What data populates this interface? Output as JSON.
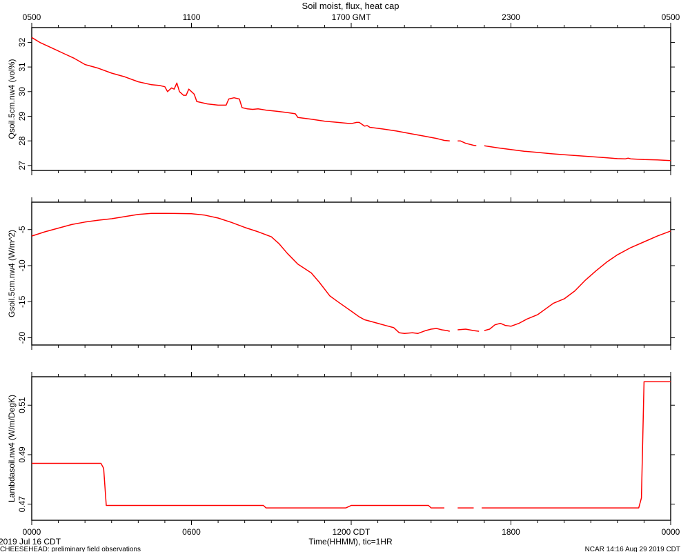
{
  "chart_data": {
    "type": "line",
    "title": "Soil moist, flux, heat cap",
    "x_axis": {
      "unit": "hours since 0000 CDT",
      "range": [
        0,
        24
      ],
      "bottom_ticks": [
        "0000",
        "0600",
        "1200 CDT",
        "1800",
        "0000"
      ],
      "bottom_tick_values": [
        0,
        6,
        12,
        18,
        24
      ],
      "top_ticks": [
        "0500",
        "1100",
        "1700 GMT",
        "2300",
        "0500"
      ],
      "top_tick_values": [
        0,
        6,
        12,
        18,
        24
      ],
      "xlabel": "Time(HHMM), tic=1HR",
      "date_label": "2019 Jul 16 CDT"
    },
    "line_color": "#ff0000",
    "panels": [
      {
        "ylabel": "Qsoil.5cm.nw4 (vol%)",
        "ylim": [
          26.8,
          32.6
        ],
        "yticks": [
          27,
          28,
          29,
          30,
          31,
          32
        ],
        "segments": [
          [
            [
              0,
              32.2
            ],
            [
              0.3,
              32.0
            ],
            [
              0.8,
              31.75
            ],
            [
              1.2,
              31.55
            ],
            [
              1.6,
              31.35
            ],
            [
              2.0,
              31.1
            ],
            [
              2.5,
              30.95
            ],
            [
              3.0,
              30.75
            ],
            [
              3.5,
              30.6
            ],
            [
              4.0,
              30.4
            ],
            [
              4.5,
              30.28
            ],
            [
              4.8,
              30.25
            ],
            [
              5.0,
              30.2
            ],
            [
              5.1,
              30.0
            ],
            [
              5.25,
              30.15
            ],
            [
              5.35,
              30.1
            ],
            [
              5.45,
              30.35
            ],
            [
              5.55,
              30.0
            ],
            [
              5.7,
              29.85
            ],
            [
              5.8,
              29.85
            ],
            [
              5.9,
              30.1
            ],
            [
              6.0,
              30.0
            ],
            [
              6.1,
              29.9
            ],
            [
              6.2,
              29.6
            ],
            [
              6.6,
              29.5
            ],
            [
              7.0,
              29.45
            ],
            [
              7.3,
              29.45
            ],
            [
              7.4,
              29.7
            ],
            [
              7.6,
              29.75
            ],
            [
              7.8,
              29.7
            ],
            [
              7.9,
              29.35
            ],
            [
              8.1,
              29.3
            ],
            [
              8.3,
              29.28
            ],
            [
              8.5,
              29.3
            ],
            [
              8.8,
              29.25
            ],
            [
              9.2,
              29.2
            ],
            [
              9.6,
              29.15
            ],
            [
              9.9,
              29.1
            ],
            [
              10.0,
              28.95
            ],
            [
              10.5,
              28.88
            ],
            [
              11.0,
              28.8
            ],
            [
              11.5,
              28.75
            ],
            [
              11.8,
              28.72
            ],
            [
              12.0,
              28.7
            ],
            [
              12.2,
              28.75
            ],
            [
              12.3,
              28.75
            ],
            [
              12.5,
              28.6
            ],
            [
              12.6,
              28.62
            ],
            [
              12.7,
              28.55
            ],
            [
              13.2,
              28.48
            ],
            [
              13.7,
              28.4
            ],
            [
              14.2,
              28.3
            ],
            [
              14.7,
              28.2
            ],
            [
              15.2,
              28.1
            ],
            [
              15.5,
              28.02
            ],
            [
              15.7,
              28.0
            ]
          ],
          [
            [
              16.0,
              28.0
            ],
            [
              16.1,
              28.0
            ],
            [
              16.3,
              27.9
            ],
            [
              16.6,
              27.82
            ],
            [
              16.7,
              27.8
            ]
          ],
          [
            [
              17.0,
              27.8
            ],
            [
              17.5,
              27.72
            ],
            [
              18.0,
              27.65
            ],
            [
              18.5,
              27.58
            ],
            [
              19.0,
              27.53
            ],
            [
              19.5,
              27.48
            ],
            [
              20.0,
              27.44
            ],
            [
              20.5,
              27.4
            ],
            [
              21.0,
              27.36
            ],
            [
              21.5,
              27.32
            ],
            [
              22.0,
              27.28
            ],
            [
              22.3,
              27.27
            ],
            [
              22.4,
              27.3
            ],
            [
              22.5,
              27.27
            ],
            [
              23.0,
              27.24
            ],
            [
              23.5,
              27.23
            ],
            [
              24.0,
              27.2
            ]
          ]
        ]
      },
      {
        "ylabel": "Gsoil.5cm.nw4 (W/m^2)",
        "ylim": [
          -21.0,
          -1.2
        ],
        "yticks": [
          -20,
          -15,
          -10,
          -5
        ],
        "segments": [
          [
            [
              0,
              -5.9
            ],
            [
              0.5,
              -5.3
            ],
            [
              1.0,
              -4.8
            ],
            [
              1.5,
              -4.3
            ],
            [
              2.0,
              -3.95
            ],
            [
              2.5,
              -3.7
            ],
            [
              3.0,
              -3.5
            ],
            [
              3.5,
              -3.2
            ],
            [
              4.0,
              -2.9
            ],
            [
              4.5,
              -2.75
            ],
            [
              5.0,
              -2.75
            ],
            [
              6.0,
              -2.8
            ],
            [
              6.5,
              -3.0
            ],
            [
              7.0,
              -3.4
            ],
            [
              7.5,
              -4.0
            ],
            [
              8.0,
              -4.7
            ],
            [
              8.5,
              -5.3
            ],
            [
              9.0,
              -6.0
            ],
            [
              9.3,
              -7.0
            ],
            [
              9.6,
              -8.3
            ],
            [
              10.0,
              -9.8
            ],
            [
              10.5,
              -11.0
            ],
            [
              10.8,
              -12.3
            ],
            [
              11.2,
              -14.2
            ],
            [
              11.5,
              -15.0
            ],
            [
              12.0,
              -16.3
            ],
            [
              12.3,
              -17.1
            ],
            [
              12.5,
              -17.5
            ],
            [
              12.8,
              -17.8
            ],
            [
              13.0,
              -18.0
            ],
            [
              13.3,
              -18.3
            ],
            [
              13.6,
              -18.6
            ],
            [
              13.8,
              -19.3
            ],
            [
              14.0,
              -19.4
            ],
            [
              14.3,
              -19.3
            ],
            [
              14.5,
              -19.4
            ],
            [
              14.8,
              -19.0
            ],
            [
              15.0,
              -18.8
            ],
            [
              15.2,
              -18.7
            ],
            [
              15.4,
              -18.9
            ],
            [
              15.6,
              -19.0
            ],
            [
              15.7,
              -19.1
            ]
          ],
          [
            [
              16.0,
              -18.9
            ],
            [
              16.3,
              -18.8
            ],
            [
              16.6,
              -19.0
            ],
            [
              16.8,
              -19.1
            ]
          ],
          [
            [
              17.0,
              -19.0
            ],
            [
              17.2,
              -18.8
            ],
            [
              17.4,
              -18.2
            ],
            [
              17.6,
              -18.0
            ],
            [
              17.8,
              -18.3
            ],
            [
              18.0,
              -18.4
            ],
            [
              18.3,
              -18.0
            ],
            [
              18.6,
              -17.4
            ],
            [
              19.0,
              -16.8
            ],
            [
              19.3,
              -16.0
            ],
            [
              19.6,
              -15.2
            ],
            [
              20.0,
              -14.6
            ],
            [
              20.4,
              -13.5
            ],
            [
              20.8,
              -12.0
            ],
            [
              21.2,
              -10.7
            ],
            [
              21.6,
              -9.5
            ],
            [
              22.0,
              -8.5
            ],
            [
              22.5,
              -7.5
            ],
            [
              23.0,
              -6.7
            ],
            [
              23.5,
              -5.9
            ],
            [
              24.0,
              -5.2
            ]
          ]
        ]
      },
      {
        "ylabel": "Lambdasoil.nw4 (W/m/DegK)",
        "ylim": [
          0.4635,
          0.5215
        ],
        "yticks": [
          0.47,
          0.49,
          0.51
        ],
        "segments": [
          [
            [
              0,
              0.4865
            ],
            [
              2.6,
              0.4865
            ],
            [
              2.7,
              0.4845
            ],
            [
              2.8,
              0.4695
            ],
            [
              4.0,
              0.4695
            ],
            [
              6.0,
              0.4695
            ],
            [
              8.0,
              0.4695
            ],
            [
              8.7,
              0.4695
            ],
            [
              8.8,
              0.4685
            ],
            [
              10.0,
              0.4685
            ],
            [
              11.0,
              0.4685
            ],
            [
              11.8,
              0.4685
            ],
            [
              12.0,
              0.4695
            ],
            [
              13.0,
              0.4695
            ],
            [
              14.0,
              0.4695
            ],
            [
              14.9,
              0.4695
            ],
            [
              15.0,
              0.4685
            ],
            [
              15.5,
              0.4685
            ]
          ],
          [
            [
              16.0,
              0.4685
            ],
            [
              16.6,
              0.4685
            ]
          ],
          [
            [
              16.9,
              0.4685
            ],
            [
              18.0,
              0.4685
            ],
            [
              20.0,
              0.4685
            ],
            [
              22.0,
              0.4685
            ],
            [
              22.8,
              0.4685
            ],
            [
              22.9,
              0.4725
            ],
            [
              23.0,
              0.5195
            ],
            [
              23.5,
              0.5195
            ],
            [
              24.0,
              0.5195
            ]
          ]
        ]
      }
    ]
  },
  "footer": {
    "left": "CHEESEHEAD: preliminary field observations",
    "right": "NCAR 14:16 Aug 29 2019 CDT"
  }
}
